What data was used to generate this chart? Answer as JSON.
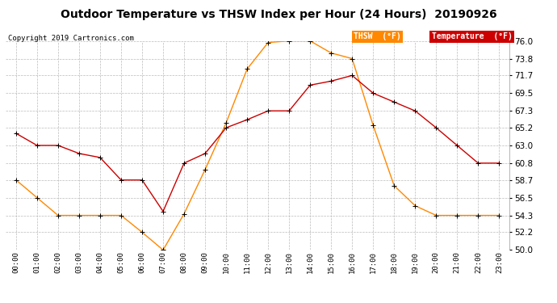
{
  "title": "Outdoor Temperature vs THSW Index per Hour (24 Hours)  20190926",
  "copyright": "Copyright 2019 Cartronics.com",
  "x_labels": [
    "00:00",
    "01:00",
    "02:00",
    "03:00",
    "04:00",
    "05:00",
    "06:00",
    "07:00",
    "08:00",
    "09:00",
    "10:00",
    "11:00",
    "12:00",
    "13:00",
    "14:00",
    "15:00",
    "16:00",
    "17:00",
    "18:00",
    "19:00",
    "20:00",
    "21:00",
    "22:00",
    "23:00"
  ],
  "temperature": [
    64.5,
    63.0,
    63.0,
    62.0,
    61.5,
    58.7,
    58.7,
    54.8,
    60.8,
    62.0,
    65.2,
    66.2,
    67.3,
    67.3,
    70.5,
    71.0,
    71.7,
    69.5,
    68.4,
    67.3,
    65.2,
    63.0,
    60.8,
    60.8
  ],
  "thsw": [
    58.7,
    56.5,
    54.3,
    54.3,
    54.3,
    54.3,
    52.2,
    50.0,
    54.5,
    60.0,
    65.8,
    72.5,
    75.8,
    76.0,
    76.0,
    74.5,
    73.8,
    65.5,
    58.0,
    55.5,
    54.3,
    54.3,
    54.3,
    54.3
  ],
  "temperature_color": "#cc0000",
  "thsw_color": "#ff8800",
  "ylim_min": 50.0,
  "ylim_max": 76.0,
  "yticks": [
    50.0,
    52.2,
    54.3,
    56.5,
    58.7,
    60.8,
    63.0,
    65.2,
    67.3,
    69.5,
    71.7,
    73.8,
    76.0
  ],
  "background_color": "#ffffff",
  "plot_bg_color": "#ffffff",
  "grid_color": "#bbbbbb"
}
